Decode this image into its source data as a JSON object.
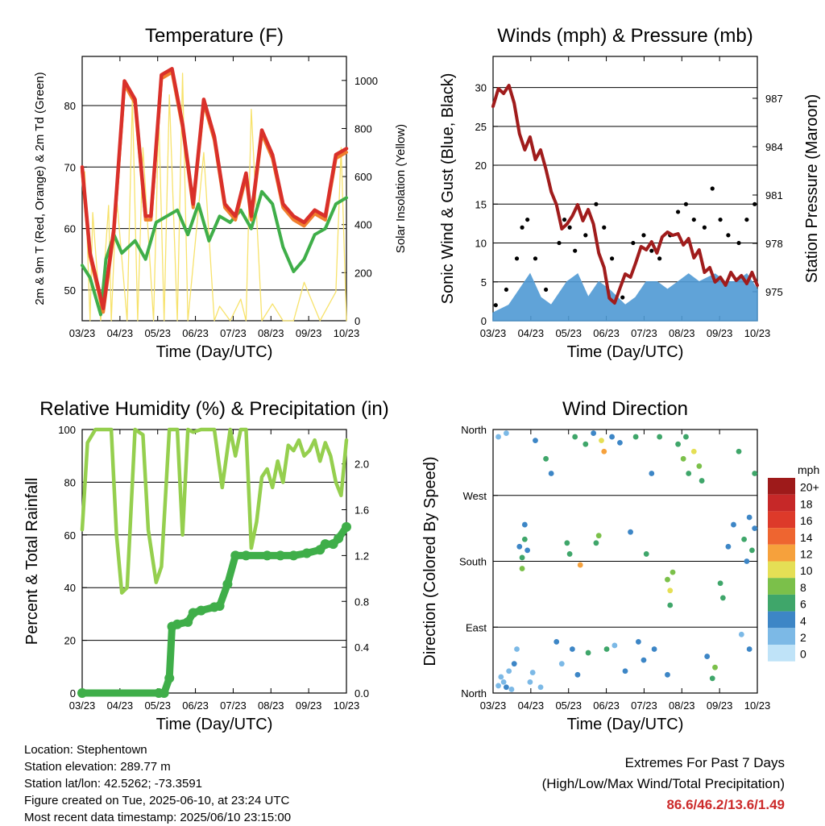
{
  "footer": {
    "location": "Location: Stephentown",
    "elevation": "Station elevation: 289.77 m",
    "latlon": "Station lat/lon: 42.5262; -73.3591",
    "created": "Figure created on Tue, 2025-06-10, at 23:24 UTC",
    "recent": "Most recent data timestamp: 2025/06/10 23:15:00"
  },
  "extremes": {
    "title": "Extremes For Past 7 Days",
    "subtitle": "(High/Low/Max Wind/Total Precipitation)",
    "values": "86.6/46.2/13.6/1.49"
  },
  "colors": {
    "temp_red": "#d9302a",
    "temp_orange": "#f07f2e",
    "dewpoint_green": "#3fae49",
    "insolation_yellow": "#f7e26b",
    "wind_blue": "#4f9ad4",
    "gust_black": "#000000",
    "pressure_maroon": "#a01c1c",
    "rh_lightgreen": "#95cf4e",
    "rain_green": "#3fae49"
  },
  "chart_data": [
    {
      "type": "line",
      "title": "Temperature (F)",
      "xlabel": "Time (Day/UTC)",
      "ylabel": "2m & 9m T (Red, Orange) & 2m Td (Green)",
      "y2label": "Solar Insolation (Yellow)",
      "x_ticks": [
        "03/23",
        "04/23",
        "05/23",
        "06/23",
        "07/23",
        "08/23",
        "09/23",
        "10/23"
      ],
      "y_ticks": [
        50,
        60,
        70,
        80
      ],
      "y2_ticks": [
        0,
        200,
        400,
        600,
        800,
        1000
      ],
      "ylim": [
        45,
        88
      ],
      "y2lim": [
        0,
        1100
      ],
      "grid": true,
      "series": [
        {
          "key": "t2m",
          "x": [
            0,
            0.03,
            0.08,
            0.12,
            0.16,
            0.2,
            0.24,
            0.26,
            0.3,
            0.34,
            0.38,
            0.42,
            0.46,
            0.5,
            0.54,
            0.58,
            0.62,
            0.64,
            0.68,
            0.72,
            0.76,
            0.8,
            0.84,
            0.88,
            0.92,
            0.96,
            1.0
          ],
          "values": [
            70,
            56,
            47,
            60,
            84,
            81,
            62,
            62,
            85,
            86,
            77,
            64,
            81,
            75,
            64,
            62,
            69,
            62,
            76,
            72,
            64,
            62,
            61,
            63,
            62,
            72,
            73
          ]
        },
        {
          "key": "td2m",
          "x": [
            0,
            0.03,
            0.07,
            0.09,
            0.12,
            0.15,
            0.2,
            0.24,
            0.28,
            0.32,
            0.36,
            0.4,
            0.44,
            0.48,
            0.52,
            0.56,
            0.6,
            0.64,
            0.68,
            0.72,
            0.76,
            0.8,
            0.84,
            0.88,
            0.92,
            0.96,
            1.0
          ],
          "values": [
            54,
            52,
            46,
            55,
            59,
            56,
            58,
            55,
            61,
            62,
            63,
            59,
            64,
            58,
            62,
            61,
            63,
            60,
            66,
            64,
            57,
            53,
            55,
            59,
            60,
            64,
            65
          ]
        },
        {
          "key": "solar",
          "x": [
            0.01,
            0.03,
            0.04,
            0.07,
            0.1,
            0.11,
            0.13,
            0.17,
            0.19,
            0.21,
            0.23,
            0.27,
            0.29,
            0.31,
            0.33,
            0.36,
            0.38,
            0.4,
            0.46,
            0.5,
            0.52,
            0.56,
            0.6,
            0.62,
            0.64,
            0.68,
            0.72,
            0.76,
            0.8,
            0.84,
            0.9,
            0.96,
            0.98,
            1.0
          ],
          "values": [
            620,
            0,
            450,
            0,
            480,
            0,
            520,
            0,
            930,
            0,
            720,
            0,
            850,
            0,
            940,
            0,
            1030,
            0,
            700,
            0,
            60,
            0,
            90,
            0,
            880,
            0,
            70,
            0,
            0,
            160,
            0,
            120,
            720,
            0
          ]
        }
      ]
    },
    {
      "type": "line",
      "title": "Winds (mph) & Pressure (mb)",
      "xlabel": "Time (Day/UTC)",
      "ylabel": "Sonic Wind & Gust (Blue, Black)",
      "y2label": "Station Pressure (Maroon)",
      "x_ticks": [
        "03/23",
        "04/23",
        "05/23",
        "06/23",
        "07/23",
        "08/23",
        "09/23",
        "10/23"
      ],
      "y_ticks": [
        0,
        5,
        10,
        15,
        20,
        25,
        30
      ],
      "y2_ticks": [
        975,
        978,
        981,
        984,
        987
      ],
      "ylim": [
        0,
        34
      ],
      "y2lim": [
        973.2,
        989.6
      ],
      "grid": true,
      "series": [
        {
          "key": "wind",
          "x": [
            0,
            0.06,
            0.1,
            0.14,
            0.18,
            0.22,
            0.26,
            0.28,
            0.32,
            0.36,
            0.4,
            0.44,
            0.5,
            0.54,
            0.58,
            0.62,
            0.66,
            0.7,
            0.74,
            0.78,
            0.84,
            0.88,
            0.92,
            0.96,
            1.0
          ],
          "values": [
            1,
            2,
            4,
            6,
            3,
            2,
            4,
            5,
            6,
            3,
            5,
            4,
            2,
            3,
            5,
            5,
            4,
            5,
            6,
            5,
            6,
            5,
            5,
            6,
            4
          ]
        },
        {
          "key": "gust",
          "x": [
            0.01,
            0.05,
            0.09,
            0.11,
            0.13,
            0.16,
            0.2,
            0.25,
            0.27,
            0.29,
            0.31,
            0.35,
            0.39,
            0.42,
            0.45,
            0.49,
            0.53,
            0.57,
            0.6,
            0.63,
            0.67,
            0.7,
            0.73,
            0.76,
            0.8,
            0.83,
            0.86,
            0.89,
            0.93,
            0.96,
            0.99
          ],
          "values": [
            2,
            4,
            8,
            12,
            13,
            8,
            4,
            10,
            13,
            12,
            9,
            11,
            15,
            12,
            8,
            3,
            10,
            11,
            9,
            8,
            11,
            14,
            15,
            13,
            12,
            17,
            13,
            11,
            10,
            13,
            15
          ]
        },
        {
          "key": "pressure",
          "x": [
            0,
            0.02,
            0.04,
            0.06,
            0.08,
            0.1,
            0.12,
            0.14,
            0.16,
            0.18,
            0.2,
            0.22,
            0.24,
            0.26,
            0.28,
            0.3,
            0.32,
            0.34,
            0.36,
            0.38,
            0.4,
            0.42,
            0.44,
            0.46,
            0.48,
            0.5,
            0.52,
            0.54,
            0.56,
            0.58,
            0.6,
            0.62,
            0.64,
            0.66,
            0.68,
            0.7,
            0.72,
            0.74,
            0.76,
            0.78,
            0.8,
            0.82,
            0.84,
            0.86,
            0.88,
            0.9,
            0.92,
            0.94,
            0.96,
            0.98,
            1.0
          ],
          "values": [
            986.5,
            987.6,
            987.3,
            987.8,
            986.7,
            984.8,
            983.8,
            984.6,
            983.2,
            983.8,
            982.6,
            981.2,
            980.4,
            978.9,
            979.2,
            979.7,
            980.4,
            979.4,
            980.1,
            979.2,
            977.4,
            976.5,
            974.6,
            974.3,
            975.2,
            976.1,
            975.9,
            976.8,
            977.8,
            977.6,
            978.1,
            977.4,
            978.4,
            978.7,
            978.5,
            978.6,
            977.9,
            978.3,
            977.1,
            977.6,
            976.2,
            976.5,
            975.6,
            975.9,
            975.4,
            976.2,
            975.7,
            976.0,
            975.5,
            976.2,
            975.4
          ]
        }
      ]
    },
    {
      "type": "line",
      "title": "Relative Humidity (%) & Precipitation (in)",
      "xlabel": "Time (Day/UTC)",
      "ylabel": "Percent & Total Rainfall",
      "x_ticks": [
        "03/23",
        "04/23",
        "05/23",
        "06/23",
        "07/23",
        "08/23",
        "09/23",
        "10/23"
      ],
      "y_ticks": [
        0,
        20,
        40,
        60,
        80,
        100
      ],
      "y2_ticks": [
        "0.0",
        "0.4",
        "0.8",
        "1.2",
        "1.6",
        "2.0"
      ],
      "ylim": [
        0,
        100
      ],
      "y2lim": [
        0,
        2.3
      ],
      "grid": true,
      "series": [
        {
          "key": "rh",
          "x": [
            0,
            0.02,
            0.05,
            0.08,
            0.11,
            0.13,
            0.15,
            0.17,
            0.2,
            0.23,
            0.25,
            0.28,
            0.3,
            0.33,
            0.36,
            0.38,
            0.4,
            0.42,
            0.45,
            0.47,
            0.5,
            0.53,
            0.56,
            0.58,
            0.6,
            0.62,
            0.64,
            0.66,
            0.68,
            0.7,
            0.72,
            0.74,
            0.76,
            0.78,
            0.8,
            0.82,
            0.84,
            0.86,
            0.88,
            0.9,
            0.92,
            0.94,
            0.96,
            0.98,
            1.0
          ],
          "values": [
            62,
            95,
            100,
            100,
            100,
            60,
            38,
            40,
            100,
            98,
            62,
            42,
            48,
            100,
            100,
            60,
            100,
            99,
            100,
            100,
            100,
            78,
            100,
            90,
            100,
            100,
            55,
            65,
            82,
            85,
            78,
            88,
            80,
            94,
            92,
            96,
            90,
            92,
            96,
            88,
            95,
            90,
            80,
            75,
            96
          ]
        },
        {
          "key": "rain",
          "x": [
            0,
            0.29,
            0.31,
            0.33,
            0.34,
            0.36,
            0.4,
            0.42,
            0.45,
            0.5,
            0.52,
            0.55,
            0.58,
            0.62,
            0.7,
            0.75,
            0.8,
            0.85,
            0.9,
            0.92,
            0.95,
            0.97,
            1.0
          ],
          "values": [
            0,
            0,
            0,
            0.13,
            0.58,
            0.6,
            0.62,
            0.7,
            0.72,
            0.75,
            0.76,
            0.95,
            1.2,
            1.2,
            1.2,
            1.2,
            1.2,
            1.22,
            1.25,
            1.3,
            1.3,
            1.35,
            1.45
          ]
        }
      ]
    },
    {
      "type": "scatter",
      "title": "Wind Direction",
      "xlabel": "Time (Day/UTC)",
      "ylabel": "Direction (Colored By Speed)",
      "x_ticks": [
        "03/23",
        "04/23",
        "05/23",
        "06/23",
        "07/23",
        "08/23",
        "09/23",
        "10/23"
      ],
      "y_ticks": [
        "North",
        "East",
        "South",
        "West",
        "North"
      ],
      "ylim": [
        0,
        360
      ],
      "grid": true,
      "legend_title": "mph",
      "legend_labels": [
        "20+",
        "18",
        "16",
        "14",
        "12",
        "10",
        "8",
        "6",
        "4",
        "2",
        "0"
      ],
      "legend_colors": [
        "#9e1a1a",
        "#c62828",
        "#dd3a2a",
        "#ee6530",
        "#f6a13c",
        "#e5df55",
        "#7bc04a",
        "#3fa66a",
        "#3d86c6",
        "#7cb9e6",
        "#bfe3f8"
      ],
      "legend_position": "right",
      "points": [
        {
          "x": 0.02,
          "y": 10,
          "s": 1
        },
        {
          "x": 0.03,
          "y": 22,
          "s": 2
        },
        {
          "x": 0.05,
          "y": 8,
          "s": 3
        },
        {
          "x": 0.06,
          "y": 30,
          "s": 1
        },
        {
          "x": 0.04,
          "y": 15,
          "s": 2
        },
        {
          "x": 0.07,
          "y": 5,
          "s": 1
        },
        {
          "x": 0.08,
          "y": 40,
          "s": 4
        },
        {
          "x": 0.02,
          "y": 350,
          "s": 1
        },
        {
          "x": 0.05,
          "y": 355,
          "s": 2
        },
        {
          "x": 0.09,
          "y": 60,
          "s": 2
        },
        {
          "x": 0.1,
          "y": 200,
          "s": 4
        },
        {
          "x": 0.11,
          "y": 185,
          "s": 6
        },
        {
          "x": 0.12,
          "y": 210,
          "s": 5
        },
        {
          "x": 0.11,
          "y": 170,
          "s": 7
        },
        {
          "x": 0.13,
          "y": 195,
          "s": 4
        },
        {
          "x": 0.12,
          "y": 230,
          "s": 3
        },
        {
          "x": 0.14,
          "y": 15,
          "s": 2
        },
        {
          "x": 0.15,
          "y": 28,
          "s": 1
        },
        {
          "x": 0.16,
          "y": 345,
          "s": 3
        },
        {
          "x": 0.18,
          "y": 8,
          "s": 2
        },
        {
          "x": 0.2,
          "y": 320,
          "s": 5
        },
        {
          "x": 0.22,
          "y": 300,
          "s": 4
        },
        {
          "x": 0.24,
          "y": 70,
          "s": 3
        },
        {
          "x": 0.26,
          "y": 40,
          "s": 2
        },
        {
          "x": 0.28,
          "y": 205,
          "s": 6
        },
        {
          "x": 0.29,
          "y": 190,
          "s": 5
        },
        {
          "x": 0.3,
          "y": 60,
          "s": 4
        },
        {
          "x": 0.31,
          "y": 350,
          "s": 6
        },
        {
          "x": 0.32,
          "y": 25,
          "s": 3
        },
        {
          "x": 0.33,
          "y": 175,
          "s": 12
        },
        {
          "x": 0.35,
          "y": 340,
          "s": 5
        },
        {
          "x": 0.36,
          "y": 55,
          "s": 6
        },
        {
          "x": 0.38,
          "y": 355,
          "s": 3
        },
        {
          "x": 0.39,
          "y": 205,
          "s": 5
        },
        {
          "x": 0.4,
          "y": 215,
          "s": 7
        },
        {
          "x": 0.41,
          "y": 345,
          "s": 9
        },
        {
          "x": 0.42,
          "y": 330,
          "s": 11
        },
        {
          "x": 0.43,
          "y": 60,
          "s": 6
        },
        {
          "x": 0.45,
          "y": 350,
          "s": 4
        },
        {
          "x": 0.46,
          "y": 65,
          "s": 2
        },
        {
          "x": 0.48,
          "y": 342,
          "s": 3
        },
        {
          "x": 0.5,
          "y": 30,
          "s": 4
        },
        {
          "x": 0.52,
          "y": 220,
          "s": 3
        },
        {
          "x": 0.54,
          "y": 350,
          "s": 5
        },
        {
          "x": 0.55,
          "y": 70,
          "s": 4
        },
        {
          "x": 0.57,
          "y": 45,
          "s": 3
        },
        {
          "x": 0.58,
          "y": 190,
          "s": 5
        },
        {
          "x": 0.6,
          "y": 300,
          "s": 3
        },
        {
          "x": 0.61,
          "y": 60,
          "s": 4
        },
        {
          "x": 0.63,
          "y": 350,
          "s": 6
        },
        {
          "x": 0.66,
          "y": 155,
          "s": 8
        },
        {
          "x": 0.67,
          "y": 140,
          "s": 9
        },
        {
          "x": 0.68,
          "y": 165,
          "s": 7
        },
        {
          "x": 0.67,
          "y": 120,
          "s": 6
        },
        {
          "x": 0.66,
          "y": 25,
          "s": 4
        },
        {
          "x": 0.7,
          "y": 340,
          "s": 6
        },
        {
          "x": 0.72,
          "y": 320,
          "s": 8
        },
        {
          "x": 0.73,
          "y": 350,
          "s": 5
        },
        {
          "x": 0.74,
          "y": 300,
          "s": 6
        },
        {
          "x": 0.76,
          "y": 330,
          "s": 9
        },
        {
          "x": 0.78,
          "y": 310,
          "s": 7
        },
        {
          "x": 0.79,
          "y": 290,
          "s": 5
        },
        {
          "x": 0.81,
          "y": 50,
          "s": 4
        },
        {
          "x": 0.83,
          "y": 20,
          "s": 6
        },
        {
          "x": 0.84,
          "y": 35,
          "s": 7
        },
        {
          "x": 0.86,
          "y": 150,
          "s": 5
        },
        {
          "x": 0.87,
          "y": 130,
          "s": 6
        },
        {
          "x": 0.89,
          "y": 200,
          "s": 3
        },
        {
          "x": 0.91,
          "y": 230,
          "s": 4
        },
        {
          "x": 0.93,
          "y": 330,
          "s": 6
        },
        {
          "x": 0.95,
          "y": 210,
          "s": 5
        },
        {
          "x": 0.96,
          "y": 180,
          "s": 4
        },
        {
          "x": 0.97,
          "y": 240,
          "s": 3
        },
        {
          "x": 0.98,
          "y": 195,
          "s": 6
        },
        {
          "x": 0.99,
          "y": 225,
          "s": 4
        },
        {
          "x": 0.94,
          "y": 80,
          "s": 2
        },
        {
          "x": 0.97,
          "y": 60,
          "s": 3
        },
        {
          "x": 0.99,
          "y": 300,
          "s": 5
        }
      ]
    }
  ]
}
